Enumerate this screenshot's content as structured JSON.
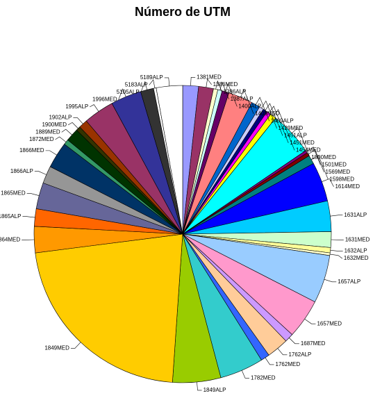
{
  "chart_data": {
    "type": "pie",
    "title": "Número de UTM",
    "categories": [
      "1381MED",
      "1386MED",
      "1386ALP",
      "1387ALP",
      "1400ALP",
      "1409MED",
      "1409ALP",
      "1429MED",
      "1451ALP",
      "1451MED",
      "1454MED",
      "1500MED",
      "1501MED",
      "1569MED",
      "1598MED",
      "1614MED",
      "1631ALP",
      "1631MED",
      "1632ALP",
      "1632MED",
      "1657ALP",
      "1657MED",
      "1687MED",
      "1762ALP",
      "1762MED",
      "1782MED",
      "1849ALP",
      "1849MED",
      "1864MED",
      "1865ALP",
      "1865MED",
      "1866ALP",
      "1866MED",
      "1872MED",
      "1889MED",
      "1900MED",
      "1902ALP",
      "1995ALP",
      "1996MED",
      "5105ALP",
      "5183ALP",
      "5189ALP"
    ],
    "values": [
      1.8,
      1.7,
      0.5,
      0.5,
      0.8,
      2.8,
      1,
      0.5,
      0.5,
      0.5,
      0.7,
      5,
      0.3,
      0.4,
      1,
      4.5,
      3.5,
      1.8,
      0.6,
      0.3,
      5.5,
      4.5,
      1,
      2.5,
      1,
      5,
      5.5,
      23,
      3,
      2,
      3,
      2,
      3,
      0.6,
      1.5,
      0.5,
      1,
      3.5,
      3.5,
      1.5,
      0.3,
      3
    ],
    "colors": [
      "#9999ff",
      "#993366",
      "#ffffcc",
      "#ccffff",
      "#660066",
      "#ff8080",
      "#0066cc",
      "#ccccff",
      "#000080",
      "#ff00ff",
      "#ffff00",
      "#00ffff",
      "#800080",
      "#800000",
      "#008080",
      "#0000ff",
      "#00ccff",
      "#ccffcc",
      "#ffff99",
      "#ffffcc",
      "#99ccff",
      "#ff99cc",
      "#cc99ff",
      "#ffcc99",
      "#3366ff",
      "#33cccc",
      "#99cc00",
      "#ffcc00",
      "#ff9900",
      "#ff6600",
      "#666699",
      "#969696",
      "#003366",
      "#339966",
      "#003300",
      "#333300",
      "#993300",
      "#993366",
      "#333399",
      "#333333",
      "#ffffff",
      "#ffffff"
    ]
  }
}
